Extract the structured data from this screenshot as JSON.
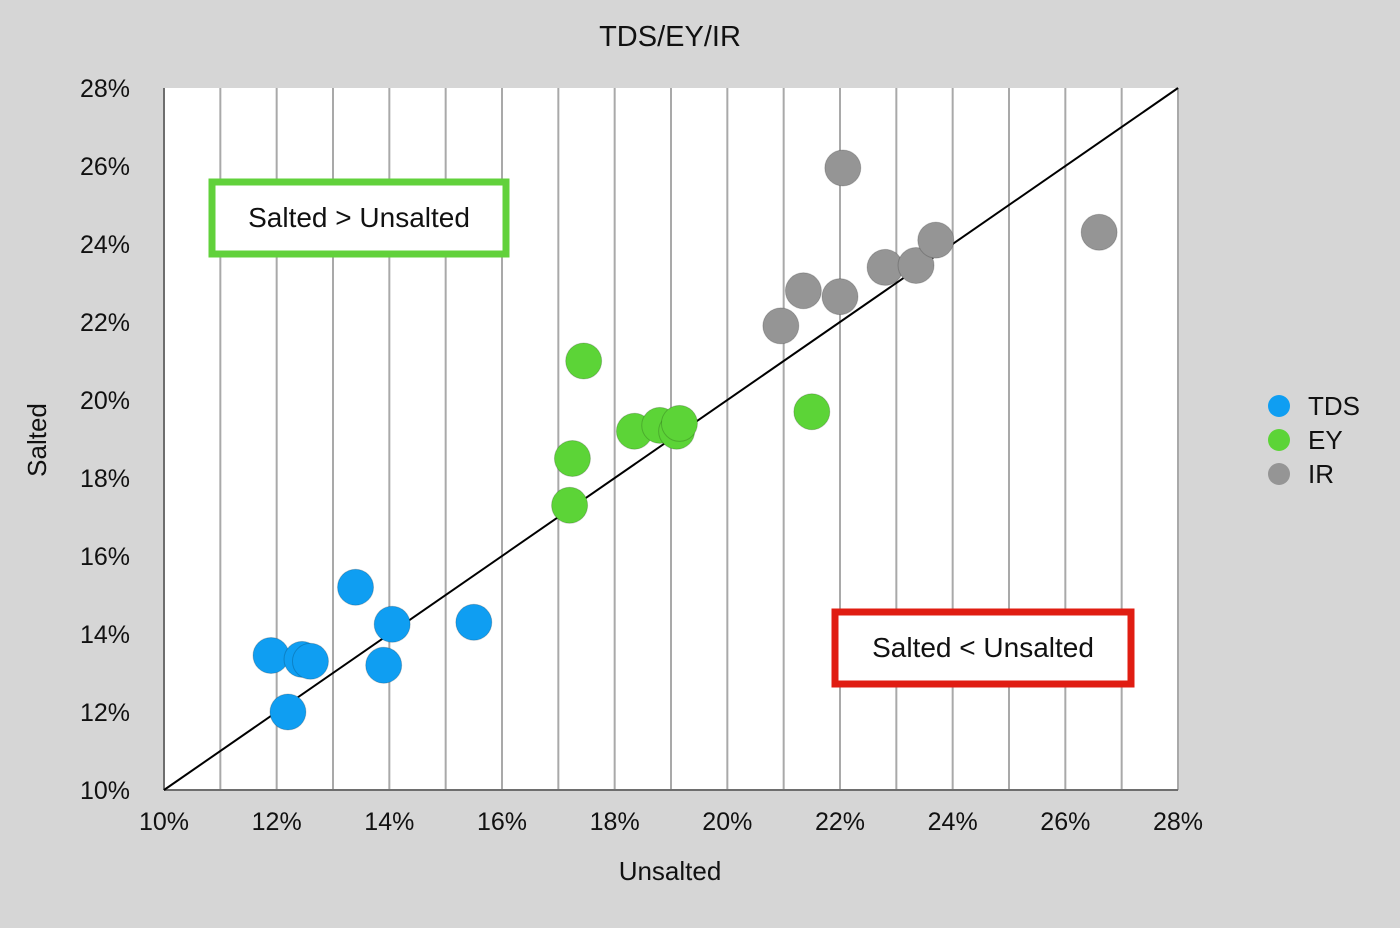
{
  "chart_data": {
    "type": "scatter",
    "title": "TDS/EY/IR",
    "xlabel": "Unsalted",
    "ylabel": "Salted",
    "xlim": [
      10,
      28
    ],
    "ylim": [
      10,
      28
    ],
    "x_ticks": [
      "10%",
      "12%",
      "14%",
      "16%",
      "18%",
      "20%",
      "22%",
      "24%",
      "26%",
      "28%"
    ],
    "y_ticks": [
      "10%",
      "12%",
      "14%",
      "16%",
      "18%",
      "20%",
      "22%",
      "24%",
      "26%",
      "28%"
    ],
    "grid": "vertical",
    "legend_position": "right",
    "series": [
      {
        "name": "TDS",
        "color": "#0f9ef2",
        "points": [
          [
            11.9,
            13.45
          ],
          [
            12.2,
            12.0
          ],
          [
            12.45,
            13.35
          ],
          [
            12.6,
            13.3
          ],
          [
            13.4,
            15.2
          ],
          [
            13.9,
            13.2
          ],
          [
            14.05,
            14.25
          ],
          [
            15.5,
            14.3
          ]
        ]
      },
      {
        "name": "EY",
        "color": "#5cd437",
        "points": [
          [
            17.2,
            17.3
          ],
          [
            17.25,
            18.5
          ],
          [
            17.45,
            21.0
          ],
          [
            18.35,
            19.2
          ],
          [
            18.8,
            19.35
          ],
          [
            19.1,
            19.2
          ],
          [
            19.15,
            19.4
          ],
          [
            21.5,
            19.7
          ]
        ]
      },
      {
        "name": "IR",
        "color": "#959595",
        "points": [
          [
            20.95,
            21.9
          ],
          [
            21.35,
            22.8
          ],
          [
            22.0,
            22.65
          ],
          [
            22.05,
            25.95
          ],
          [
            22.8,
            23.4
          ],
          [
            23.35,
            23.45
          ],
          [
            23.7,
            24.1
          ],
          [
            26.6,
            24.3
          ]
        ]
      }
    ],
    "reference_line": {
      "from": [
        10,
        10
      ],
      "to": [
        28,
        28
      ],
      "color": "#000000"
    },
    "annotations": [
      {
        "text": "Salted > Unsalted",
        "border_color": "#61d13b"
      },
      {
        "text": "Salted < Unsalted",
        "border_color": "#e01d12"
      }
    ]
  }
}
